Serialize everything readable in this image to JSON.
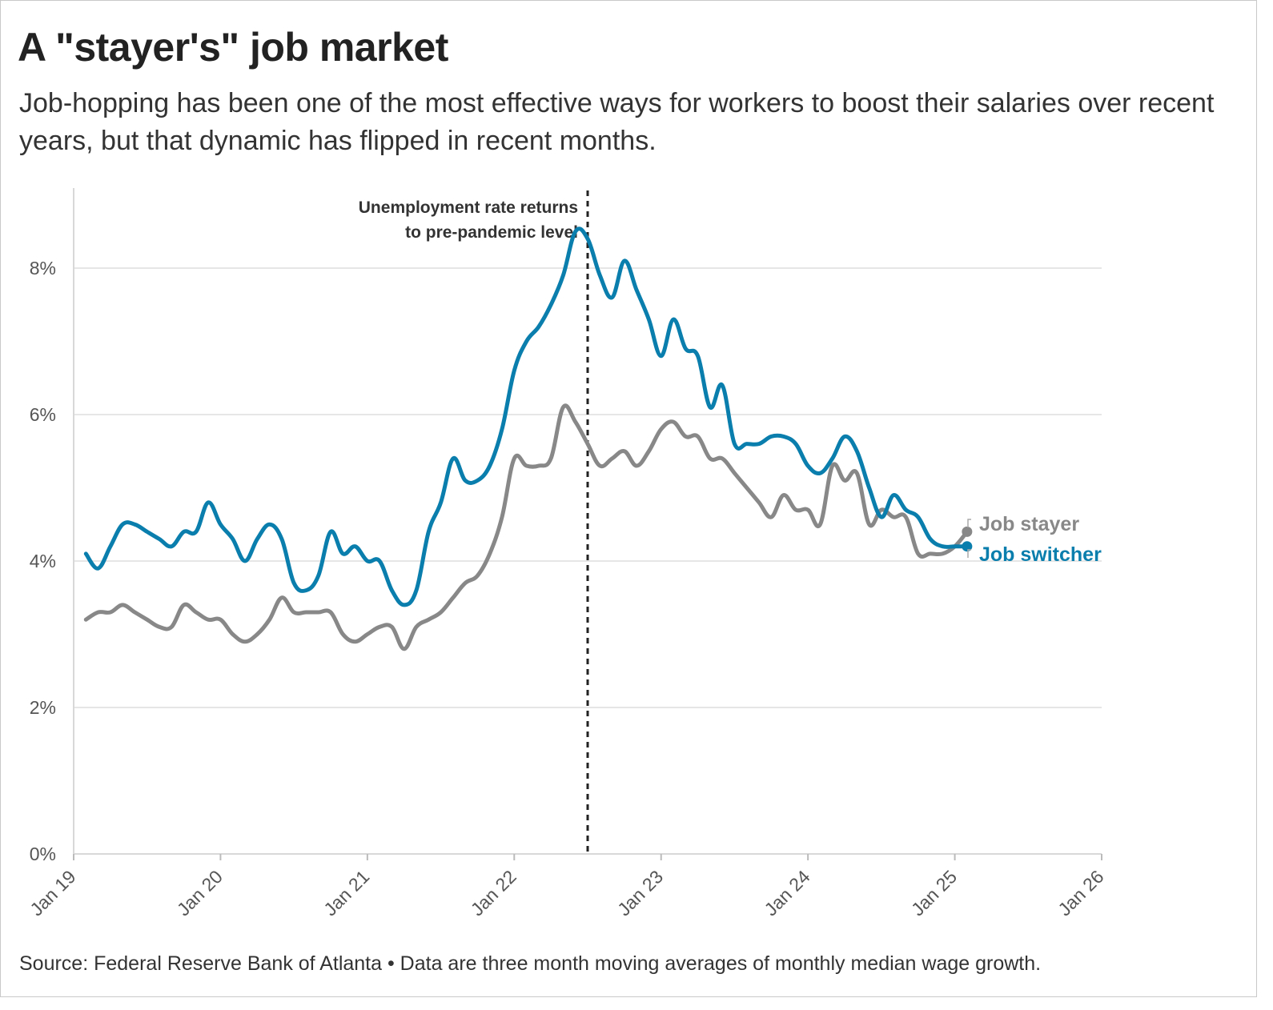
{
  "header": {
    "title": "A \"stayer's\" job market",
    "subtitle": "Job-hopping has been one of the most effective ways for workers to boost their salaries over recent years, but that dynamic has flipped in recent months."
  },
  "footer": {
    "source": "Source: Federal Reserve Bank of Atlanta • Data are three month moving averages of monthly median wage growth."
  },
  "chart_data": {
    "type": "line",
    "ylim": [
      0,
      8.8
    ],
    "xlim": [
      "2019-01",
      "2026-01"
    ],
    "y_ticks": [
      {
        "value": 0,
        "label": "0%"
      },
      {
        "value": 2,
        "label": "2%"
      },
      {
        "value": 4,
        "label": "4%"
      },
      {
        "value": 6,
        "label": "6%"
      },
      {
        "value": 8,
        "label": "8%"
      }
    ],
    "x_ticks": [
      {
        "value": "2019-01",
        "label": "Jan 19"
      },
      {
        "value": "2020-01",
        "label": "Jan 20"
      },
      {
        "value": "2021-01",
        "label": "Jan 21"
      },
      {
        "value": "2022-01",
        "label": "Jan 22"
      },
      {
        "value": "2023-01",
        "label": "Jan 23"
      },
      {
        "value": "2024-01",
        "label": "Jan 24"
      },
      {
        "value": "2025-01",
        "label": "Jan 25"
      },
      {
        "value": "2026-01",
        "label": "Jan 26"
      }
    ],
    "grid": true,
    "annotation": {
      "date": "2022-07",
      "lines": [
        "Unemployment rate returns",
        "to pre-pandemic level"
      ]
    },
    "x": [
      "2019-02",
      "2019-03",
      "2019-04",
      "2019-05",
      "2019-06",
      "2019-07",
      "2019-08",
      "2019-09",
      "2019-10",
      "2019-11",
      "2019-12",
      "2020-01",
      "2020-02",
      "2020-03",
      "2020-04",
      "2020-05",
      "2020-06",
      "2020-07",
      "2020-08",
      "2020-09",
      "2020-10",
      "2020-11",
      "2020-12",
      "2021-01",
      "2021-02",
      "2021-03",
      "2021-04",
      "2021-05",
      "2021-06",
      "2021-07",
      "2021-08",
      "2021-09",
      "2021-10",
      "2021-11",
      "2021-12",
      "2022-01",
      "2022-02",
      "2022-03",
      "2022-04",
      "2022-05",
      "2022-06",
      "2022-07",
      "2022-08",
      "2022-09",
      "2022-10",
      "2022-11",
      "2022-12",
      "2023-01",
      "2023-02",
      "2023-03",
      "2023-04",
      "2023-05",
      "2023-06",
      "2023-07",
      "2023-08",
      "2023-09",
      "2023-10",
      "2023-11",
      "2023-12",
      "2024-01",
      "2024-02",
      "2024-03",
      "2024-04",
      "2024-05",
      "2024-06",
      "2024-07",
      "2024-08",
      "2024-09",
      "2024-10",
      "2024-11",
      "2024-12",
      "2025-01",
      "2025-02"
    ],
    "series": [
      {
        "name": "Job stayer",
        "color": "#888888",
        "values": [
          3.2,
          3.3,
          3.3,
          3.4,
          3.3,
          3.2,
          3.1,
          3.1,
          3.4,
          3.3,
          3.2,
          3.2,
          3.0,
          2.9,
          3.0,
          3.2,
          3.5,
          3.3,
          3.3,
          3.3,
          3.3,
          3.0,
          2.9,
          3.0,
          3.1,
          3.1,
          2.8,
          3.1,
          3.2,
          3.3,
          3.5,
          3.7,
          3.8,
          4.1,
          4.6,
          5.4,
          5.3,
          5.3,
          5.4,
          6.1,
          5.9,
          5.6,
          5.3,
          5.4,
          5.5,
          5.3,
          5.5,
          5.8,
          5.9,
          5.7,
          5.7,
          5.4,
          5.4,
          5.2,
          5.0,
          4.8,
          4.6,
          4.9,
          4.7,
          4.7,
          4.5,
          5.3,
          5.1,
          5.2,
          4.5,
          4.7,
          4.6,
          4.6,
          4.1,
          4.1,
          4.1,
          4.2,
          4.4
        ]
      },
      {
        "name": "Job switcher",
        "color": "#0a7eac",
        "values": [
          4.1,
          3.9,
          4.2,
          4.5,
          4.5,
          4.4,
          4.3,
          4.2,
          4.4,
          4.4,
          4.8,
          4.5,
          4.3,
          4.0,
          4.3,
          4.5,
          4.3,
          3.7,
          3.6,
          3.8,
          4.4,
          4.1,
          4.2,
          4.0,
          4.0,
          3.6,
          3.4,
          3.6,
          4.4,
          4.8,
          5.4,
          5.1,
          5.1,
          5.3,
          5.8,
          6.6,
          7.0,
          7.2,
          7.5,
          7.9,
          8.5,
          8.4,
          7.9,
          7.6,
          8.1,
          7.7,
          7.3,
          6.8,
          7.3,
          6.9,
          6.8,
          6.1,
          6.4,
          5.6,
          5.6,
          5.6,
          5.7,
          5.7,
          5.6,
          5.3,
          5.2,
          5.4,
          5.7,
          5.5,
          5.0,
          4.6,
          4.9,
          4.7,
          4.6,
          4.3,
          4.2,
          4.2,
          4.2
        ]
      }
    ]
  }
}
